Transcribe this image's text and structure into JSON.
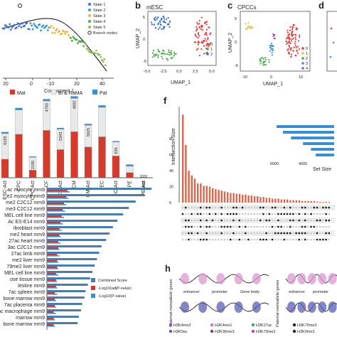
{
  "panels": {
    "a": {
      "legend": [
        "State 1",
        "State 2",
        "State 3",
        "State 4",
        "State 5",
        "Branch nodes"
      ],
      "legend_colors": [
        "#3b6fd0",
        "#2f9ad6",
        "#e5b83b",
        "#4aa84a",
        "#8bbf5a",
        "#333333"
      ],
      "xlabel": "Component 1",
      "xticks": [
        "20",
        "0",
        "-10",
        "20",
        "40"
      ]
    },
    "b": {
      "letter": "b",
      "title": "mESC",
      "xlabel": "UMAP_1",
      "ylabel": "UMAP_2",
      "xticks": [
        "-5.0",
        "-2.5",
        "0.0",
        "2.5",
        "5.0"
      ],
      "yticks": [
        "5",
        "0",
        "-5"
      ],
      "legend": [
        "0",
        "1",
        "2"
      ],
      "legend_colors": [
        "#e03c3c",
        "#4aa84a",
        "#3b6fd0"
      ]
    },
    "c": {
      "letter": "c",
      "title": "CPCCs",
      "xlabel": "UMAP_1",
      "ylabel": "UMAP_2",
      "xticks": [
        "-10",
        "0",
        "10"
      ],
      "yticks": [
        "5",
        "0",
        "-5"
      ],
      "legend": [
        "0",
        "1",
        "2",
        "3",
        "4"
      ],
      "legend_colors": [
        "#e03c3c",
        "#d6c93b",
        "#4aa84a",
        "#3b8fd0",
        "#9b59b6"
      ]
    },
    "d": {
      "letter": "d"
    },
    "e": {
      "legend": [
        "Mat",
        "Bi & RaMA",
        "Pat"
      ],
      "legend_colors": [
        "#d63a2a",
        "#e9e9e9",
        "#3b8fd0"
      ]
    },
    "f": {
      "letter": "f",
      "ylabel": "Intersection Size",
      "yticks": [
        "0",
        "20",
        "40",
        "60",
        "80"
      ],
      "setsize_label": "Set Size",
      "setsize_ticks": [
        "6000",
        "4000"
      ]
    },
    "g": {
      "terms": [
        "ac myocyte mm9",
        "e2 myocyte mm9",
        "me2 C2C12 mm9",
        "me3 C2C12 mm9",
        "MEL cell line mm9",
        "Ac ES-E14 mm9",
        "ibroblast mm9",
        "me2 heart mm9",
        "27ac heart mm9",
        "3ac C2C12 mm9",
        "27ac limb mm9",
        "me2 liver mm9",
        "79me2 liver mm9",
        "MEL cell line mm9",
        "ose tissue mm9",
        "lestine mm9",
        "7ac spleen mm9",
        "bone marrow mm9",
        "7ac placenta mm9",
        "ac macrophage mm9",
        "marrow mm9",
        "bone marrow mm9"
      ],
      "legend": [
        "Combined Score",
        "-Log10(adjP-value)",
        "-Log10(P-value)"
      ],
      "legend_colors": [
        "#4a7ea8",
        "#d63a2a",
        "#3b8fd0"
      ],
      "xticks": [
        "0",
        "20",
        "40",
        "60",
        "80"
      ]
    },
    "h": {
      "letter": "h",
      "row1": "Maternal-monoallelic genes",
      "row2": "Paternal-monoallelic genes",
      "labels": [
        "enhancer",
        "promoter",
        "Gene body"
      ],
      "legend": [
        "H3K4me3",
        "H3K4me1",
        "H3K27ac",
        "H3K79me3",
        "H3K9ac",
        "H3K36me3",
        "H3K79me2",
        "H3K9me3"
      ]
    }
  },
  "chart_data": [
    {
      "panel": "e",
      "type": "bar",
      "categories": [
        "ESC-Act",
        "CPC",
        "CPC-Act",
        "CF",
        "CF-Act",
        "CM",
        "CM-Act",
        "EC",
        "EC-Act",
        "PE",
        "PE-Act"
      ],
      "series": [
        {
          "name": "Mat",
          "values": [
            1450,
            3400,
            600,
            3700,
            2200,
            3600,
            2400,
            3200,
            1700,
            400,
            80
          ]
        },
        {
          "name": "Bi & RaMA",
          "values": [
            2000,
            1900,
            1000,
            2300,
            1600,
            2600,
            1700,
            2300,
            1100,
            500,
            100
          ]
        },
        {
          "name": "Pat",
          "values": [
            120,
            150,
            60,
            140,
            90,
            160,
            110,
            150,
            60,
            130,
            30
          ]
        }
      ],
      "data_labels": [
        "6193",
        "",
        "2195",
        "4760",
        "5343",
        "4892",
        "5625",
        "",
        "635",
        "",
        "449"
      ],
      "ylim": [
        0,
        6000
      ]
    },
    {
      "panel": "g",
      "type": "bar",
      "categories": [
        "ac myocyte mm9",
        "e2 myocyte mm9",
        "me2 C2C12 mm9",
        "me3 C2C12 mm9",
        "MEL cell line mm9",
        "Ac ES-E14 mm9",
        "ibroblast mm9",
        "me2 heart mm9",
        "27ac heart mm9",
        "3ac C2C12 mm9",
        "27ac limb mm9",
        "me2 liver mm9",
        "79me2 liver mm9",
        "MEL cell line mm9",
        "ose tissue mm9",
        "lestine mm9",
        "7ac spleen mm9",
        "bone marrow mm9",
        "7ac placenta mm9",
        "ac macrophage mm9",
        "marrow mm9",
        "bone marrow mm9"
      ],
      "series": [
        {
          "name": "Combined Score",
          "values": [
            92,
            86,
            78,
            72,
            67,
            62,
            58,
            55,
            52,
            48,
            46,
            44,
            42,
            40,
            38,
            36,
            34,
            33,
            31,
            30,
            28,
            27
          ]
        },
        {
          "name": "-Log10(adjP-value)",
          "values": [
            18,
            17,
            15,
            14,
            13,
            12,
            11,
            11,
            10,
            10,
            9,
            9,
            9,
            8,
            8,
            8,
            7,
            7,
            7,
            6,
            6,
            6
          ]
        },
        {
          "name": "-Log10(P-value)",
          "values": [
            20,
            19,
            17,
            16,
            15,
            14,
            13,
            12,
            12,
            11,
            11,
            10,
            10,
            10,
            9,
            9,
            9,
            8,
            8,
            8,
            7,
            7
          ]
        }
      ],
      "xlim": [
        0,
        100
      ]
    },
    {
      "panel": "f",
      "type": "bar",
      "values": [
        110,
        72,
        40,
        34,
        30,
        24,
        24,
        21,
        21,
        20,
        18,
        17,
        16,
        15,
        14,
        13,
        12,
        12,
        11,
        11,
        10,
        10,
        9,
        9,
        8,
        8,
        7,
        7,
        6,
        6,
        5,
        5,
        5,
        4,
        4,
        4,
        3,
        3,
        3,
        3,
        2,
        2,
        2,
        2,
        2,
        1,
        1,
        1,
        1,
        1
      ],
      "ylim": [
        0,
        120
      ],
      "set_sizes": [
        7200,
        6400,
        5400,
        3900,
        2900,
        2300
      ]
    }
  ]
}
